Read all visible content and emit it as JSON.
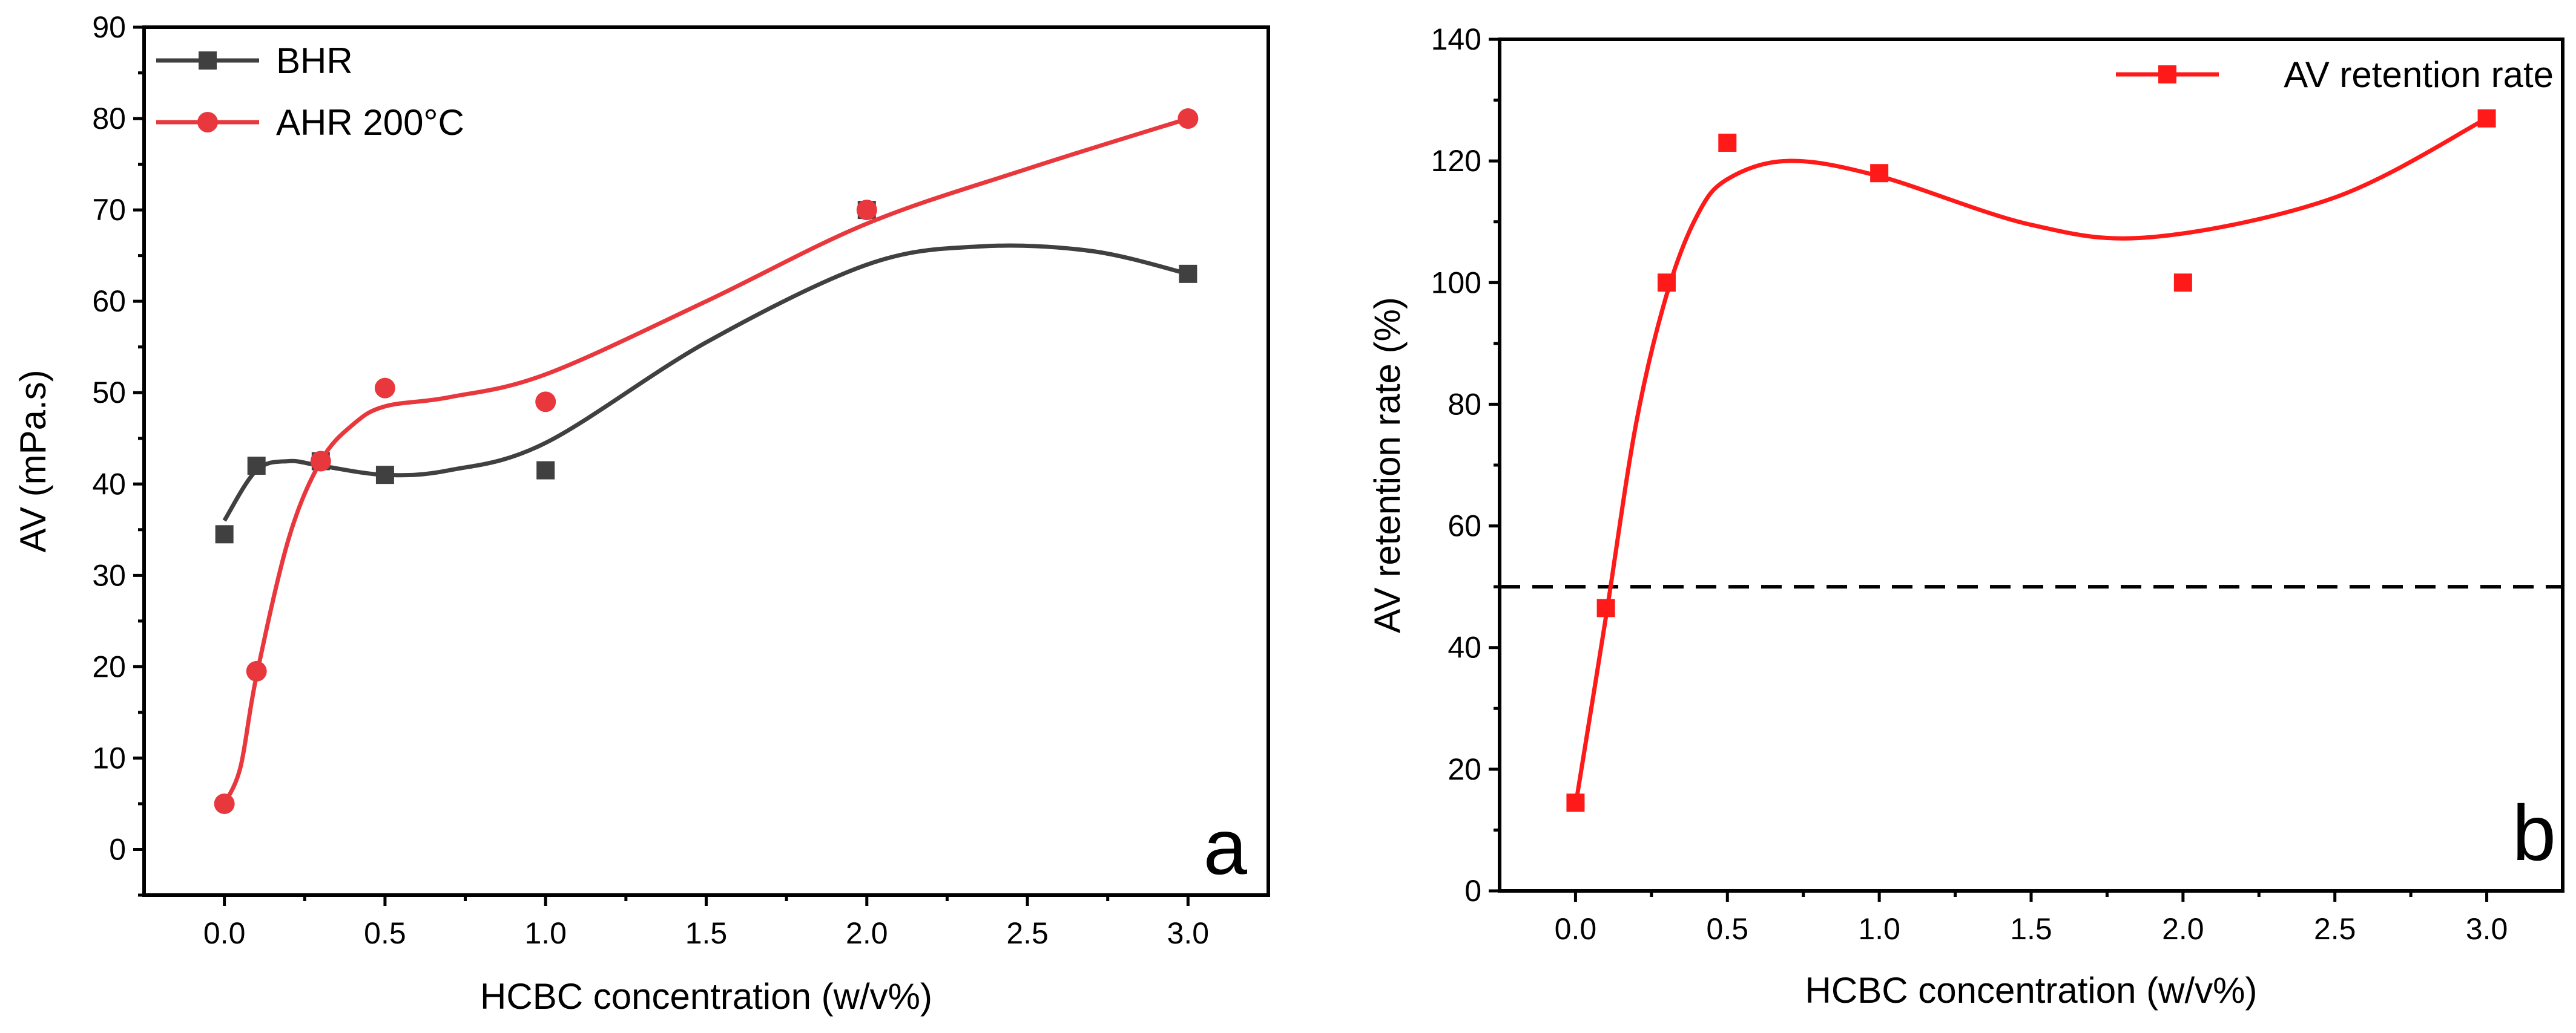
{
  "chart_data": [
    {
      "type": "scatter",
      "panel_label": "a",
      "title": "",
      "xlabel": "HCBC concentration (w/v%)",
      "ylabel": "AV (mPa.s)",
      "xlim": [
        -0.25,
        3.25
      ],
      "ylim": [
        -5,
        90
      ],
      "xticks": [
        "0.0",
        "0.5",
        "1.0",
        "1.5",
        "2.0",
        "2.5",
        "3.0"
      ],
      "yticks": [
        "0",
        "10",
        "20",
        "30",
        "40",
        "50",
        "60",
        "70",
        "80",
        "90"
      ],
      "legend_position": "top-left",
      "grid": false,
      "series": [
        {
          "name": "BHR",
          "marker": "square",
          "color": "#404040",
          "x": [
            0.0,
            0.1,
            0.3,
            0.5,
            1.0,
            2.0,
            3.0
          ],
          "y": [
            34.5,
            42,
            42.5,
            41,
            41.5,
            70,
            63
          ],
          "fit_curve": {
            "x": [
              0.0,
              0.1,
              0.2,
              0.3,
              0.5,
              0.7,
              1.0,
              1.5,
              2.0,
              2.35,
              2.7,
              3.0
            ],
            "y": [
              36.0,
              41.5,
              42.5,
              42.0,
              41.0,
              41.5,
              44.5,
              55.5,
              64.0,
              66.0,
              65.5,
              63.0
            ]
          }
        },
        {
          "name": "AHR 200°C",
          "marker": "circle",
          "color": "#e8383d",
          "x": [
            0.0,
            0.1,
            0.3,
            0.5,
            1.0,
            2.0,
            3.0
          ],
          "y": [
            5,
            19.5,
            42.5,
            50.5,
            49,
            70,
            80
          ],
          "fit_curve": {
            "x": [
              0.0,
              0.05,
              0.1,
              0.2,
              0.3,
              0.4,
              0.5,
              0.7,
              1.0,
              1.5,
              2.0,
              2.5,
              3.0
            ],
            "y": [
              5,
              9,
              19,
              34,
              42.5,
              46.5,
              48.5,
              49.5,
              52,
              60,
              68.5,
              74.5,
              80
            ]
          }
        }
      ]
    },
    {
      "type": "scatter",
      "panel_label": "b",
      "title": "",
      "xlabel": "HCBC concentration (w/v%)",
      "ylabel": "AV retention rate (%)",
      "xlim": [
        -0.25,
        3.25
      ],
      "ylim": [
        0,
        140
      ],
      "xticks": [
        "0.0",
        "0.5",
        "1.0",
        "1.5",
        "2.0",
        "2.5",
        "3.0"
      ],
      "yticks": [
        "0",
        "20",
        "40",
        "60",
        "80",
        "100",
        "120",
        "140"
      ],
      "legend_position": "top-right",
      "grid": false,
      "reference_line": {
        "y": 50,
        "style": "dashed",
        "color": "#000000"
      },
      "series": [
        {
          "name": "AV retention rate",
          "marker": "square",
          "color": "#ff1a1a",
          "x": [
            0.0,
            0.1,
            0.3,
            0.5,
            1.0,
            2.0,
            3.0
          ],
          "y": [
            14.5,
            46.5,
            100,
            123,
            118,
            100,
            127
          ],
          "fit_curve": {
            "x": [
              0.0,
              0.1,
              0.2,
              0.3,
              0.4,
              0.5,
              0.7,
              1.0,
              1.5,
              1.9,
              2.5,
              3.0
            ],
            "y": [
              14,
              45,
              77,
              98,
              111,
              117,
              120,
              117.5,
              109.5,
              107.5,
              114,
              127
            ]
          }
        }
      ]
    }
  ]
}
